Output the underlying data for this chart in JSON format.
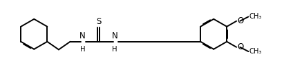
{
  "background_color": "#ffffff",
  "line_color": "#000000",
  "line_width": 1.4,
  "font_size": 8.5,
  "figsize": [
    4.24,
    1.08
  ],
  "dpi": 100,
  "xlim": [
    0,
    10.0
  ],
  "ylim": [
    0,
    2.5
  ]
}
